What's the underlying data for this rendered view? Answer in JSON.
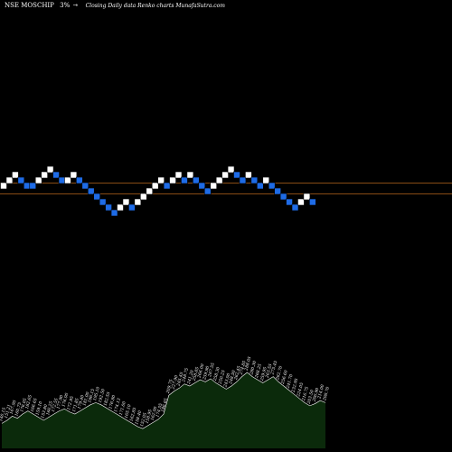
{
  "header": {
    "ticker": "NSE MOSCHIP",
    "change": "3%",
    "subtitle": "Closing Daily data  Renko  charts MunafaSutra.com"
  },
  "colors": {
    "background": "#000000",
    "up_brick": "#ffffff",
    "down_brick": "#1e6be6",
    "ref_line": "#b5651d",
    "volume_fill": "#0b2a0b",
    "volume_line": "#ffffff"
  },
  "chart_data": {
    "type": "renko",
    "grid": false,
    "bricks": [
      {
        "level": 0,
        "dir": "up"
      },
      {
        "level": 1,
        "dir": "up"
      },
      {
        "level": 2,
        "dir": "up"
      },
      {
        "level": 1,
        "dir": "down"
      },
      {
        "level": 0,
        "dir": "down"
      },
      {
        "level": 0,
        "dir": "down"
      },
      {
        "level": 1,
        "dir": "up"
      },
      {
        "level": 2,
        "dir": "up"
      },
      {
        "level": 3,
        "dir": "up"
      },
      {
        "level": 2,
        "dir": "down"
      },
      {
        "level": 1,
        "dir": "down"
      },
      {
        "level": 1,
        "dir": "up"
      },
      {
        "level": 2,
        "dir": "up"
      },
      {
        "level": 1,
        "dir": "down"
      },
      {
        "level": 0,
        "dir": "down"
      },
      {
        "level": -1,
        "dir": "down"
      },
      {
        "level": -2,
        "dir": "down"
      },
      {
        "level": -3,
        "dir": "down"
      },
      {
        "level": -4,
        "dir": "down"
      },
      {
        "level": -5,
        "dir": "down"
      },
      {
        "level": -4,
        "dir": "up"
      },
      {
        "level": -3,
        "dir": "up"
      },
      {
        "level": -4,
        "dir": "down"
      },
      {
        "level": -3,
        "dir": "up"
      },
      {
        "level": -2,
        "dir": "up"
      },
      {
        "level": -1,
        "dir": "up"
      },
      {
        "level": 0,
        "dir": "up"
      },
      {
        "level": 1,
        "dir": "up"
      },
      {
        "level": 0,
        "dir": "down"
      },
      {
        "level": 1,
        "dir": "up"
      },
      {
        "level": 2,
        "dir": "up"
      },
      {
        "level": 1,
        "dir": "down"
      },
      {
        "level": 2,
        "dir": "up"
      },
      {
        "level": 1,
        "dir": "down"
      },
      {
        "level": 0,
        "dir": "down"
      },
      {
        "level": -1,
        "dir": "down"
      },
      {
        "level": 0,
        "dir": "up"
      },
      {
        "level": 1,
        "dir": "up"
      },
      {
        "level": 2,
        "dir": "up"
      },
      {
        "level": 3,
        "dir": "up"
      },
      {
        "level": 2,
        "dir": "down"
      },
      {
        "level": 1,
        "dir": "down"
      },
      {
        "level": 2,
        "dir": "up"
      },
      {
        "level": 1,
        "dir": "down"
      },
      {
        "level": 0,
        "dir": "down"
      },
      {
        "level": 1,
        "dir": "up"
      },
      {
        "level": 0,
        "dir": "down"
      },
      {
        "level": -1,
        "dir": "down"
      },
      {
        "level": -2,
        "dir": "down"
      },
      {
        "level": -3,
        "dir": "down"
      },
      {
        "level": -4,
        "dir": "down"
      },
      {
        "level": -3,
        "dir": "up"
      },
      {
        "level": -2,
        "dir": "up"
      },
      {
        "level": -3,
        "dir": "down"
      }
    ],
    "reference_levels": [
      0.5,
      -1.5
    ],
    "volume": [
      {
        "value": 24,
        "label": "140.15"
      },
      {
        "value": 27,
        "label": "151.21"
      },
      {
        "value": 31,
        "label": "167.95"
      },
      {
        "value": 29,
        "label": "160.75"
      },
      {
        "value": 33,
        "label": "176.05"
      },
      {
        "value": 36,
        "label": "182.65"
      },
      {
        "value": 33,
        "label": "166.65"
      },
      {
        "value": 30,
        "label": "159.10"
      },
      {
        "value": 27,
        "label": "153.80"
      },
      {
        "value": 30,
        "label": "166.25"
      },
      {
        "value": 33,
        "label": "172.55"
      },
      {
        "value": 36,
        "label": "177.90"
      },
      {
        "value": 38,
        "label": "176.00"
      },
      {
        "value": 35,
        "label": "172.95"
      },
      {
        "value": 33,
        "label": "171.85"
      },
      {
        "value": 36,
        "label": "179.40"
      },
      {
        "value": 39,
        "label": "181.00"
      },
      {
        "value": 42,
        "label": "186.15"
      },
      {
        "value": 44,
        "label": "195.10"
      },
      {
        "value": 42,
        "label": "192.50"
      },
      {
        "value": 39,
        "label": "182.55"
      },
      {
        "value": 36,
        "label": "176.80"
      },
      {
        "value": 33,
        "label": "174.13"
      },
      {
        "value": 30,
        "label": "171.00"
      },
      {
        "value": 27,
        "label": "165.10"
      },
      {
        "value": 24,
        "label": "162.85"
      },
      {
        "value": 21,
        "label": "158.40"
      },
      {
        "value": 19,
        "label": "152.05"
      },
      {
        "value": 22,
        "label": "158.95"
      },
      {
        "value": 25,
        "label": "162.00"
      },
      {
        "value": 28,
        "label": "174.55"
      },
      {
        "value": 33,
        "label": "186.65"
      },
      {
        "value": 51,
        "label": "209.75"
      },
      {
        "value": 55,
        "label": "227.90"
      },
      {
        "value": 58,
        "label": "245.45"
      },
      {
        "value": 62,
        "label": "248.75"
      },
      {
        "value": 60,
        "label": "241.20"
      },
      {
        "value": 63,
        "label": "258.85"
      },
      {
        "value": 66,
        "label": "266.00"
      },
      {
        "value": 64,
        "label": "259.90"
      },
      {
        "value": 67,
        "label": "267.55"
      },
      {
        "value": 63,
        "label": "258.30"
      },
      {
        "value": 60,
        "label": "250.25"
      },
      {
        "value": 57,
        "label": "243.00"
      },
      {
        "value": 60,
        "label": "248.50"
      },
      {
        "value": 64,
        "label": "262.45"
      },
      {
        "value": 69,
        "label": "274.85"
      },
      {
        "value": 73,
        "label": "288.05"
      },
      {
        "value": 69,
        "label": "280.30"
      },
      {
        "value": 66,
        "label": "268.25"
      },
      {
        "value": 63,
        "label": "259.95"
      },
      {
        "value": 66,
        "label": "263.55"
      },
      {
        "value": 69,
        "label": "275.45"
      },
      {
        "value": 64,
        "label": "262.70"
      },
      {
        "value": 60,
        "label": "256.60"
      },
      {
        "value": 56,
        "label": "241.70"
      },
      {
        "value": 52,
        "label": "232.95"
      },
      {
        "value": 48,
        "label": "224.05"
      },
      {
        "value": 44,
        "label": "216.75"
      },
      {
        "value": 41,
        "label": "203.50"
      },
      {
        "value": 43,
        "label": "206.90"
      },
      {
        "value": 46,
        "label": "214.00"
      },
      {
        "value": 44,
        "label": "208.70"
      }
    ]
  }
}
